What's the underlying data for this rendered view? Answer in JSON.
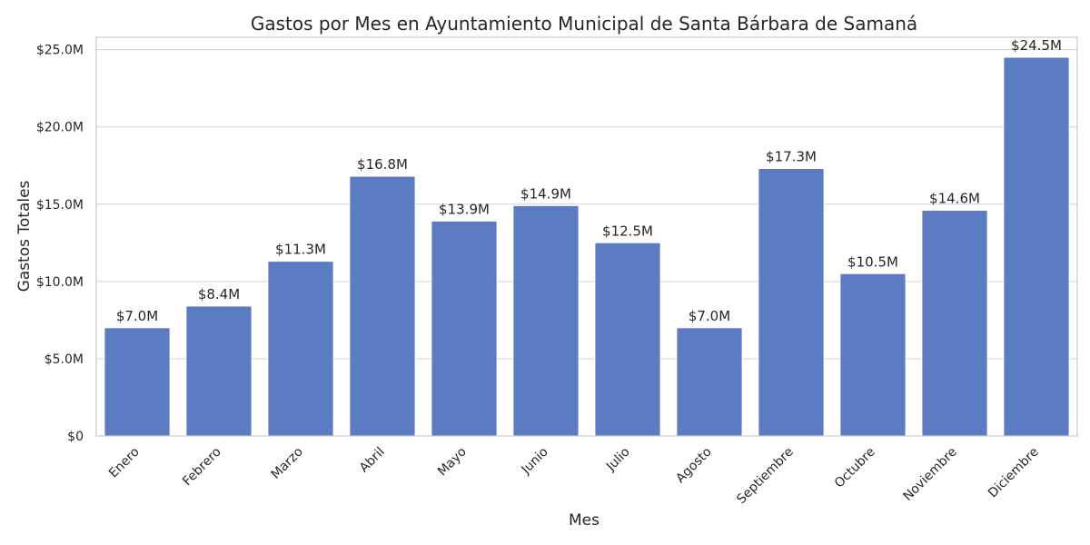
{
  "chart_data": {
    "type": "bar",
    "title": "Gastos por Mes en Ayuntamiento Municipal de Santa Bárbara de Samaná",
    "xlabel": "Mes",
    "ylabel": "Gastos Totales",
    "categories": [
      "Enero",
      "Febrero",
      "Marzo",
      "Abril",
      "Mayo",
      "Junio",
      "Julio",
      "Agosto",
      "Septiembre",
      "Octubre",
      "Noviembre",
      "Diciembre"
    ],
    "values": [
      7.0,
      8.4,
      11.3,
      16.8,
      13.9,
      14.9,
      12.5,
      7.0,
      17.3,
      10.5,
      14.6,
      24.5
    ],
    "data_labels": [
      "$7.0M",
      "$8.4M",
      "$11.3M",
      "$16.8M",
      "$13.9M",
      "$14.9M",
      "$12.5M",
      "$7.0M",
      "$17.3M",
      "$10.5M",
      "$14.6M",
      "$24.5M"
    ],
    "y_ticks": [
      0,
      5,
      10,
      15,
      20,
      25
    ],
    "y_tick_labels": [
      "$0",
      "$5.0M",
      "$10.0M",
      "$15.0M",
      "$20.0M",
      "$25.0M"
    ],
    "ylim": [
      0,
      25.8
    ],
    "value_unit": "millions of $",
    "grid": "horizontal",
    "bar_color": "#5b7cc2",
    "tick_label_rotation": "45deg"
  }
}
